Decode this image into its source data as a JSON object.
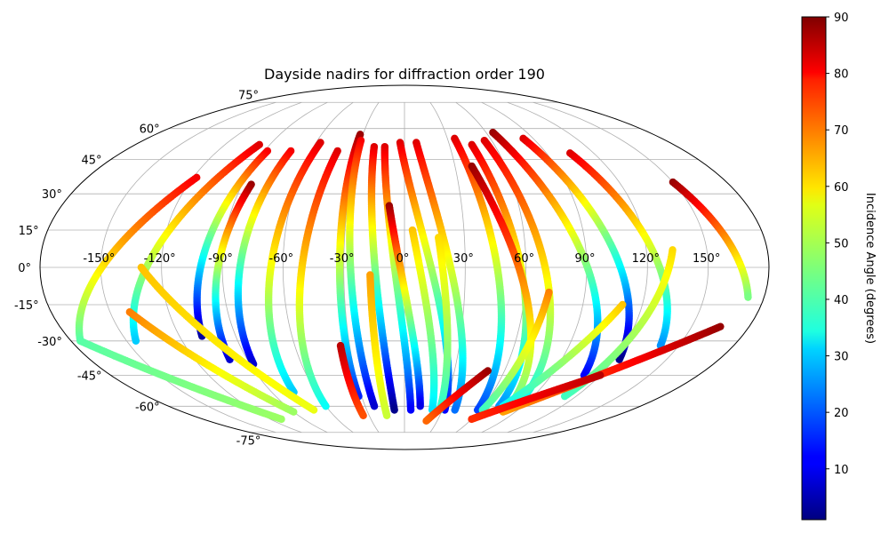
{
  "chart_data": {
    "type": "scatter",
    "projection": "mollweide",
    "title": "Dayside nadirs for diffraction order 190",
    "xlabel": "",
    "ylabel": "",
    "xlim": [
      -180,
      180
    ],
    "ylim": [
      -90,
      90
    ],
    "grid": true,
    "lon_tick_labels": [
      "-150°",
      "-120°",
      "-90°",
      "-60°",
      "-30°",
      "0°",
      "30°",
      "60°",
      "90°",
      "120°",
      "150°"
    ],
    "lat_tick_labels": [
      "-75°",
      "-60°",
      "-45°",
      "-30°",
      "-15°",
      "0°",
      "15°",
      "30°",
      "45°",
      "60°",
      "75°"
    ],
    "colorbar": {
      "label": "Incidence Angle (degrees)",
      "colormap": "jet",
      "range": [
        1,
        90
      ],
      "tick_labels": [
        "10",
        "20",
        "30",
        "40",
        "50",
        "60",
        "70",
        "80",
        "90"
      ]
    },
    "tracks": [
      {
        "lon_start": -118,
        "lat_start": 37,
        "lon_end": -175,
        "lat_end": -30,
        "inc_start": 80,
        "inc_end": 42
      },
      {
        "lon_start": -97,
        "lat_start": 52,
        "lon_end": -145,
        "lat_end": -30,
        "inc_start": 82,
        "inc_start_note": "",
        "inc_end": 30
      },
      {
        "lon_start": -88,
        "lat_start": 49,
        "lon_end": -108,
        "lat_end": -28,
        "inc_start": 80,
        "inc_end": 4
      },
      {
        "lon_start": -85,
        "lat_start": 34,
        "lon_end": -100,
        "lat_end": -38,
        "inc_start": 88,
        "inc_end": 8
      },
      {
        "lon_start": -73,
        "lat_start": 49,
        "lon_end": -88,
        "lat_end": -40,
        "inc_start": 80,
        "inc_end": 8
      },
      {
        "lon_start": -57,
        "lat_start": 53,
        "lon_end": -75,
        "lat_end": -53,
        "inc_start": 82,
        "inc_end": 30
      },
      {
        "lon_start": -43,
        "lat_start": 49,
        "lon_end": -60,
        "lat_end": -60,
        "inc_start": 82,
        "inc_end": 35
      },
      {
        "lon_start": -32,
        "lat_start": 57,
        "lon_end": -32,
        "lat_end": -55,
        "inc_start": 88,
        "inc_end": 15
      },
      {
        "lon_start": -30,
        "lat_start": 54,
        "lon_end": -23,
        "lat_end": -60,
        "inc_start": 80,
        "inc_end": 8
      },
      {
        "lon_start": -20,
        "lat_start": 51,
        "lon_end": -8,
        "lat_end": -62,
        "inc_start": 82,
        "inc_end": 2
      },
      {
        "lon_start": -13,
        "lat_start": 51,
        "lon_end": 5,
        "lat_end": -62,
        "inc_start": 82,
        "inc_end": 12
      },
      {
        "lon_start": -8,
        "lat_start": 25,
        "lon_end": 12,
        "lat_end": -60,
        "inc_start": 88,
        "inc_end": 10
      },
      {
        "lon_start": -3,
        "lat_start": 53,
        "lon_end": 32,
        "lat_end": -62,
        "inc_start": 82,
        "inc_end": 12
      },
      {
        "lon_start": 8,
        "lat_start": 53,
        "lon_end": 40,
        "lat_end": -62,
        "inc_start": 82,
        "inc_end": 22
      },
      {
        "lon_start": 4,
        "lat_start": 15,
        "lon_end": 22,
        "lat_end": -62,
        "inc_start": 62,
        "inc_end": 32
      },
      {
        "lon_start": 17,
        "lat_start": 12,
        "lon_end": 28,
        "lat_end": -62,
        "inc_start": 60,
        "inc_end": 38
      },
      {
        "lon_start": 35,
        "lat_start": 55,
        "lon_end": 58,
        "lat_end": -62,
        "inc_start": 82,
        "inc_end": 18
      },
      {
        "lon_start": 45,
        "lat_start": 52,
        "lon_end": 72,
        "lat_end": -60,
        "inc_start": 82,
        "inc_end": 25
      },
      {
        "lon_start": 55,
        "lat_start": 54,
        "lon_end": 85,
        "lat_end": -58,
        "inc_start": 82,
        "inc_end": 35
      },
      {
        "lon_start": 65,
        "lat_start": 58,
        "lon_end": 110,
        "lat_end": -45,
        "inc_start": 88,
        "inc_end": 12
      },
      {
        "lon_start": 83,
        "lat_start": 55,
        "lon_end": 123,
        "lat_end": -38,
        "inc_start": 82,
        "inc_end": 2
      },
      {
        "lon_start": 105,
        "lat_start": 48,
        "lon_end": 140,
        "lat_end": -32,
        "inc_start": 82,
        "inc_end": 25
      },
      {
        "lon_start": 150,
        "lat_start": 35,
        "lon_end": 172,
        "lat_end": -12,
        "inc_start": 88,
        "inc_end": 45
      },
      {
        "lon_start": 40,
        "lat_start": 42,
        "lon_end": 78,
        "lat_end": -55,
        "inc_start": 88,
        "inc_end": 45
      },
      {
        "lon_start": 133,
        "lat_start": 7,
        "lon_end": 112,
        "lat_end": -55,
        "inc_start": 60,
        "inc_end": 40
      },
      {
        "lon_start": 110,
        "lat_start": -15,
        "lon_end": 75,
        "lat_end": -60,
        "inc_start": 62,
        "inc_end": 35
      },
      {
        "lon_start": 72,
        "lat_start": -10,
        "lon_end": 62,
        "lat_end": -62,
        "inc_start": 68,
        "inc_end": 40
      },
      {
        "lon_start": 165,
        "lat_start": -24,
        "lon_end": 80,
        "lat_end": -63,
        "inc_start": 88,
        "inc_end": 65
      },
      {
        "lon_start": -140,
        "lat_start": -18,
        "lon_end": -90,
        "lat_end": -63,
        "inc_start": 68,
        "inc_end": 48
      },
      {
        "lon_start": -175,
        "lat_start": -30,
        "lon_end": -110,
        "lat_end": -67,
        "inc_start": 42,
        "inc_end": 48
      },
      {
        "lon_start": -130,
        "lat_start": 0,
        "lon_end": -72,
        "lat_end": -62,
        "inc_start": 62,
        "inc_end": 55
      },
      {
        "lon_start": -35,
        "lat_start": -32,
        "lon_end": -35,
        "lat_end": -65,
        "inc_start": 85,
        "inc_end": 72
      },
      {
        "lon_start": -17,
        "lat_start": -3,
        "lon_end": -15,
        "lat_end": -65,
        "inc_start": 65,
        "inc_end": 52
      },
      {
        "lon_start": 50,
        "lat_start": -43,
        "lon_end": 20,
        "lat_end": -68,
        "inc_start": 88,
        "inc_end": 70
      },
      {
        "lon_start": 120,
        "lat_start": -45,
        "lon_end": 60,
        "lat_end": -67,
        "inc_start": 85,
        "inc_end": 75
      }
    ]
  }
}
